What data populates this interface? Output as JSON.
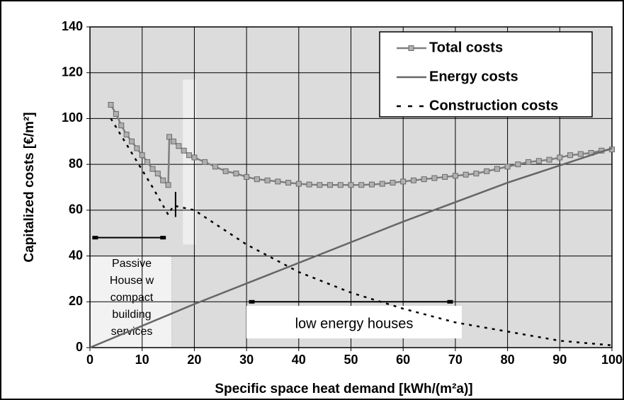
{
  "chart_data": {
    "type": "line",
    "xlabel": "Specific space  heat demand [kWh/(m²a)]",
    "ylabel": "Capitalized costs [€/m²]",
    "xlim": [
      0,
      100
    ],
    "xticks": [
      0,
      10,
      20,
      30,
      40,
      50,
      60,
      70,
      80,
      90,
      100
    ],
    "ylim": [
      0,
      140
    ],
    "yticks": [
      0,
      20,
      40,
      60,
      80,
      100,
      120,
      140
    ],
    "grid": true,
    "legend": "upper right",
    "series": [
      {
        "name": "Total costs",
        "color": "#7f7f7f",
        "marker": "square",
        "line_style": "solid",
        "x": [
          4,
          5,
          6,
          7,
          8,
          9,
          10,
          11,
          12,
          13,
          14,
          15,
          15.2,
          16,
          17,
          18,
          19,
          20,
          22,
          24,
          26,
          28,
          30,
          32,
          34,
          36,
          38,
          40,
          42,
          44,
          46,
          48,
          50,
          52,
          54,
          56,
          58,
          60,
          62,
          64,
          66,
          68,
          70,
          72,
          74,
          76,
          78,
          80,
          82,
          84,
          86,
          88,
          90,
          92,
          94,
          96,
          98,
          100
        ],
        "values": [
          106,
          102,
          97,
          93,
          90,
          87,
          84,
          81,
          78,
          76,
          73,
          71,
          92,
          90,
          88,
          86,
          84,
          83,
          81,
          79,
          77,
          76,
          74.5,
          73.5,
          73,
          72.5,
          72,
          71.5,
          71.2,
          71,
          71,
          71,
          71,
          71,
          71.2,
          71.5,
          72,
          72.5,
          73,
          73.5,
          74,
          74.5,
          75,
          75.5,
          76,
          77,
          78,
          79,
          80,
          81,
          81.5,
          82,
          83,
          84,
          84.5,
          85,
          86,
          86.5
        ]
      },
      {
        "name": "Energy costs",
        "color": "#666666",
        "marker": "none",
        "line_style": "solid",
        "x": [
          0,
          20,
          40,
          60,
          80,
          100
        ],
        "values": [
          0,
          19,
          37,
          55,
          72,
          87
        ]
      },
      {
        "name": "Construction costs",
        "color": "#000000",
        "marker": "none",
        "line_style": "dashed",
        "x": [
          4,
          8,
          12,
          15,
          16,
          20,
          30,
          40,
          50,
          60,
          70,
          80,
          90,
          100
        ],
        "values": [
          100,
          85,
          70,
          58,
          62,
          60,
          45,
          33,
          24,
          17,
          11,
          7,
          3,
          1
        ]
      }
    ],
    "annotations": {
      "passive_house": [
        "Passive",
        "House w",
        "compact",
        "building",
        "services"
      ],
      "low_energy": "low energy houses"
    }
  }
}
